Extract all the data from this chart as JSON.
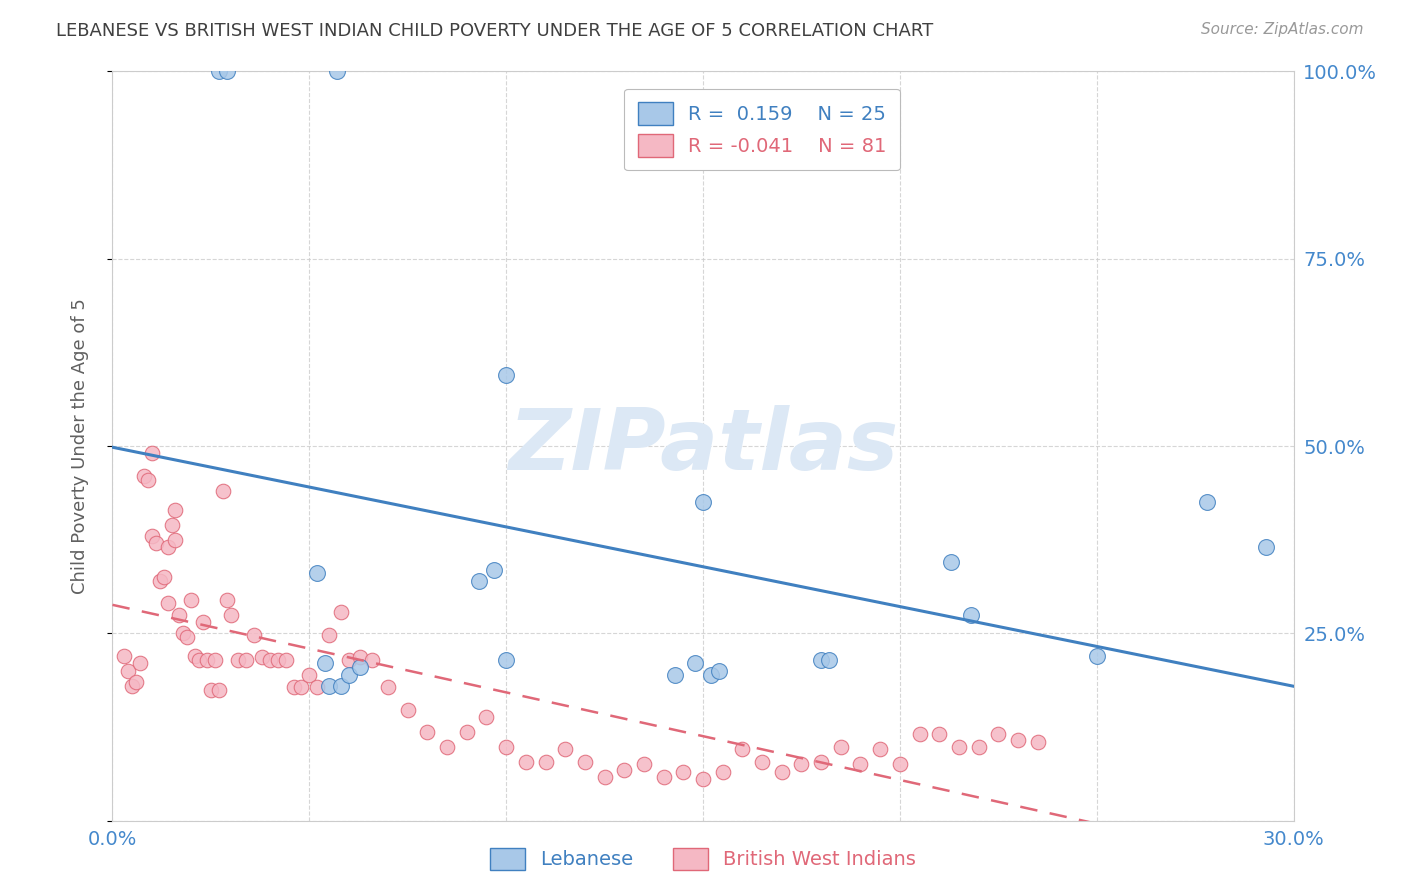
{
  "title": "LEBANESE VS BRITISH WEST INDIAN CHILD POVERTY UNDER THE AGE OF 5 CORRELATION CHART",
  "source": "Source: ZipAtlas.com",
  "ylabel": "Child Poverty Under the Age of 5",
  "xlim": [
    0.0,
    0.3
  ],
  "ylim": [
    0.0,
    1.0
  ],
  "ytick_values": [
    0.0,
    0.25,
    0.5,
    0.75,
    1.0
  ],
  "ytick_labels_right": [
    "",
    "25.0%",
    "50.0%",
    "75.0%",
    "100.0%"
  ],
  "xtick_values": [
    0.0,
    0.05,
    0.1,
    0.15,
    0.2,
    0.25,
    0.3
  ],
  "xtick_labels": [
    "0.0%",
    "",
    "",
    "",
    "",
    "",
    "30.0%"
  ],
  "blue_color": "#a8c8e8",
  "pink_color": "#f5b8c4",
  "line_blue_color": "#4080c0",
  "line_pink_color": "#e06878",
  "watermark_color": "#dce8f5",
  "background_color": "#ffffff",
  "title_color": "#404040",
  "axis_label_color": "#606060",
  "tick_color": "#4488cc",
  "grid_color": "#cccccc",
  "leb_r": "0.159",
  "leb_n": "25",
  "bwi_r": "-0.041",
  "bwi_n": "81",
  "leb_x": [
    0.027,
    0.029,
    0.057,
    0.1,
    0.052,
    0.054,
    0.055,
    0.058,
    0.06,
    0.063,
    0.093,
    0.097,
    0.1,
    0.143,
    0.148,
    0.15,
    0.152,
    0.154,
    0.18,
    0.182,
    0.213,
    0.218,
    0.25,
    0.278,
    0.293
  ],
  "leb_y": [
    1.0,
    1.0,
    1.0,
    0.595,
    0.33,
    0.21,
    0.18,
    0.18,
    0.195,
    0.205,
    0.32,
    0.335,
    0.215,
    0.195,
    0.21,
    0.425,
    0.195,
    0.2,
    0.215,
    0.215,
    0.345,
    0.275,
    0.22,
    0.425,
    0.365
  ],
  "bwi_x": [
    0.003,
    0.004,
    0.005,
    0.006,
    0.007,
    0.008,
    0.009,
    0.01,
    0.01,
    0.011,
    0.012,
    0.013,
    0.014,
    0.014,
    0.015,
    0.016,
    0.016,
    0.017,
    0.018,
    0.019,
    0.02,
    0.021,
    0.022,
    0.023,
    0.024,
    0.025,
    0.026,
    0.027,
    0.028,
    0.029,
    0.03,
    0.032,
    0.034,
    0.036,
    0.038,
    0.04,
    0.042,
    0.044,
    0.046,
    0.048,
    0.05,
    0.052,
    0.055,
    0.058,
    0.06,
    0.063,
    0.066,
    0.07,
    0.075,
    0.08,
    0.085,
    0.09,
    0.095,
    0.1,
    0.105,
    0.11,
    0.115,
    0.12,
    0.125,
    0.13,
    0.135,
    0.14,
    0.145,
    0.15,
    0.155,
    0.16,
    0.165,
    0.17,
    0.175,
    0.18,
    0.185,
    0.19,
    0.195,
    0.2,
    0.205,
    0.21,
    0.215,
    0.22,
    0.225,
    0.23,
    0.235
  ],
  "bwi_y": [
    0.22,
    0.2,
    0.18,
    0.185,
    0.21,
    0.46,
    0.455,
    0.49,
    0.38,
    0.37,
    0.32,
    0.325,
    0.365,
    0.29,
    0.395,
    0.375,
    0.415,
    0.275,
    0.25,
    0.245,
    0.295,
    0.22,
    0.215,
    0.265,
    0.215,
    0.175,
    0.215,
    0.175,
    0.44,
    0.295,
    0.275,
    0.215,
    0.215,
    0.248,
    0.218,
    0.215,
    0.215,
    0.215,
    0.178,
    0.178,
    0.195,
    0.178,
    0.248,
    0.278,
    0.215,
    0.218,
    0.215,
    0.178,
    0.148,
    0.118,
    0.098,
    0.118,
    0.138,
    0.098,
    0.078,
    0.078,
    0.095,
    0.078,
    0.058,
    0.068,
    0.075,
    0.058,
    0.065,
    0.055,
    0.065,
    0.095,
    0.078,
    0.065,
    0.075,
    0.078,
    0.098,
    0.075,
    0.095,
    0.075,
    0.115,
    0.115,
    0.098,
    0.098,
    0.115,
    0.108,
    0.105
  ]
}
